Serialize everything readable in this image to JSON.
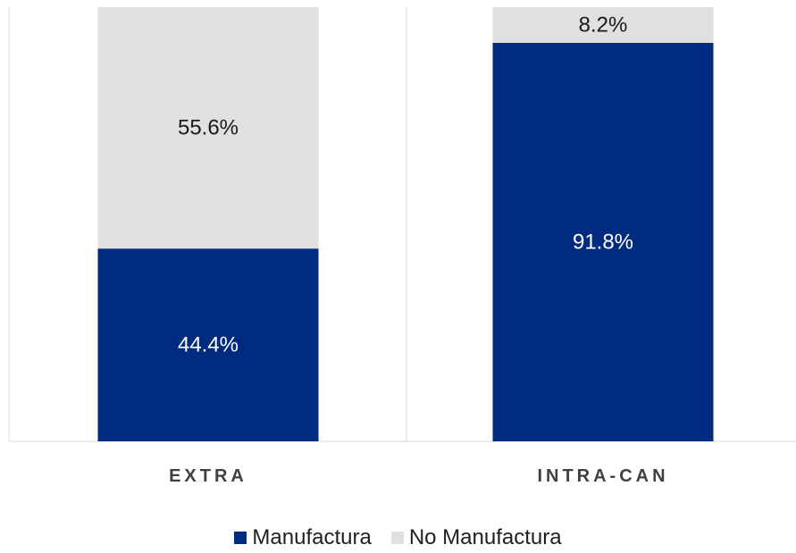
{
  "chart_data": {
    "type": "bar",
    "stacked": true,
    "percent_stacked": true,
    "categories": [
      "EXTRA",
      "INTRA-CAN"
    ],
    "series": [
      {
        "name": "Manufactura",
        "values": [
          44.4,
          91.8
        ],
        "labels": [
          "44.4%",
          "91.8%"
        ],
        "color": "#002b7f",
        "label_color": "#ffffff"
      },
      {
        "name": "No Manufactura",
        "values": [
          55.6,
          8.2
        ],
        "labels": [
          "55.6%",
          "8.2%"
        ],
        "color": "#e0e0e0",
        "label_color": "#1a1a1a"
      }
    ],
    "ylim": [
      0,
      100
    ],
    "title": "",
    "xlabel": "",
    "ylabel": "",
    "grid": false,
    "legend_position": "bottom"
  }
}
